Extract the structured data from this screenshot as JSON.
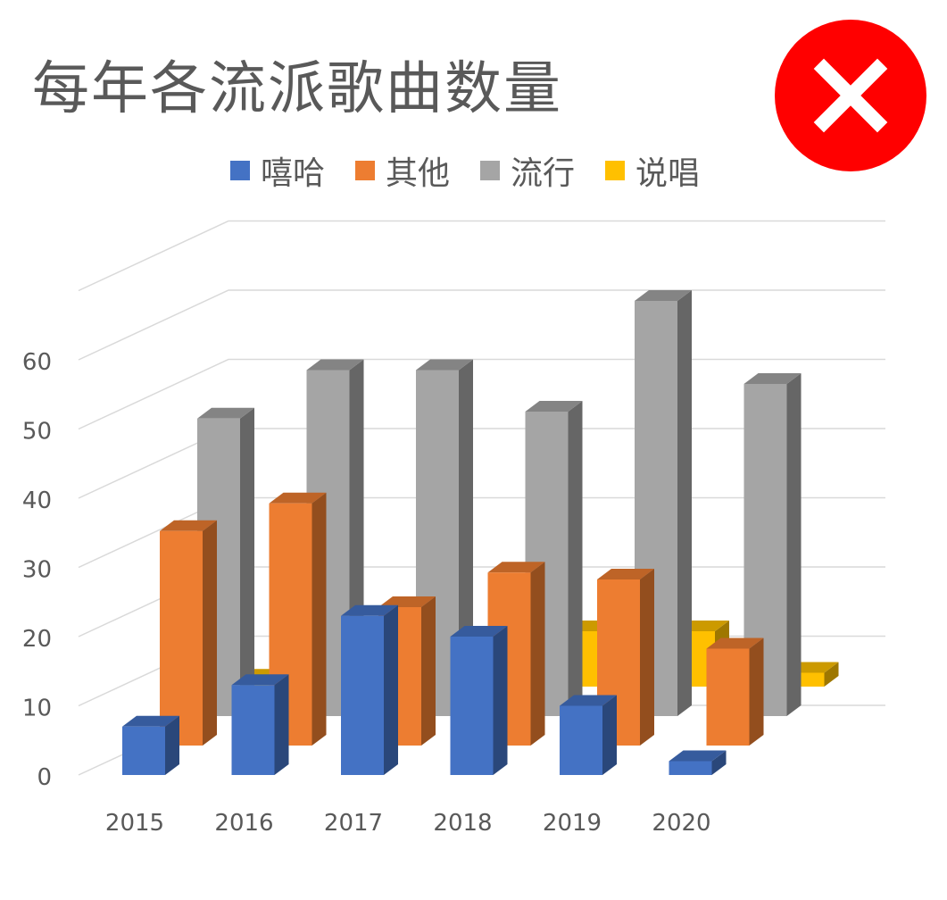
{
  "title": "每年各流派歌曲数量",
  "close_icon": "close-x-icon",
  "colors": {
    "close_bg": "#ff0000",
    "hiphop": "#4472c4",
    "other": "#ed7d31",
    "pop": "#a5a5a5",
    "rap": "#ffc000"
  },
  "legend": [
    {
      "name": "嘻哈",
      "color": "#4472c4"
    },
    {
      "name": "其他",
      "color": "#ed7d31"
    },
    {
      "name": "流行",
      "color": "#a5a5a5"
    },
    {
      "name": "说唱",
      "color": "#ffc000"
    }
  ],
  "chart_data": {
    "type": "bar",
    "subtype": "3d-clustered-column",
    "title": "每年各流派歌曲数量",
    "categories": [
      "2015",
      "2016",
      "2017",
      "2018",
      "2019",
      "2020"
    ],
    "series": [
      {
        "name": "嘻哈",
        "values": [
          7,
          13,
          23,
          20,
          10,
          2
        ]
      },
      {
        "name": "其他",
        "values": [
          31,
          35,
          20,
          25,
          24,
          14
        ]
      },
      {
        "name": "流行",
        "values": [
          43,
          50,
          50,
          44,
          60,
          48
        ]
      },
      {
        "name": "说唱",
        "values": [
          1,
          2,
          4,
          8,
          8,
          2
        ]
      }
    ],
    "yticks": [
      "0",
      "10",
      "20",
      "30",
      "40",
      "50",
      "60"
    ],
    "ylim": [
      0,
      70
    ],
    "grid": true,
    "legend_position": "top"
  }
}
